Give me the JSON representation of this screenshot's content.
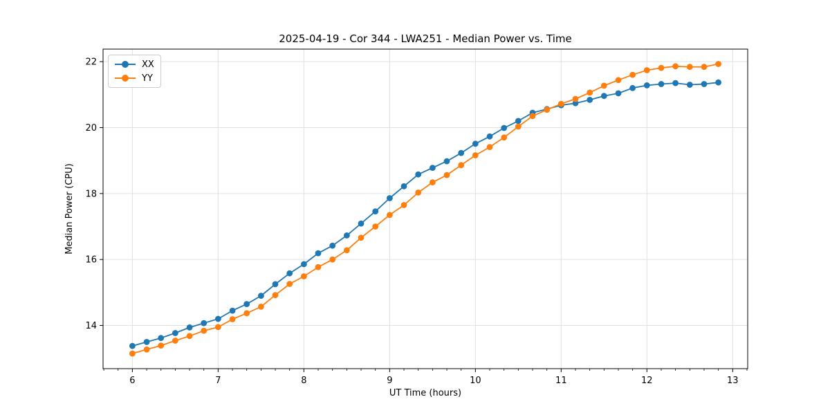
{
  "chart_data": {
    "type": "line",
    "title": "2025-04-19 - Cor 344 - LWA251 - Median Power vs. Time",
    "xlabel": "UT Time (hours)",
    "ylabel": "Median Power (CPU)",
    "xlim": [
      5.658,
      13.175
    ],
    "ylim": [
      12.69,
      22.38
    ],
    "xticks": [
      6,
      7,
      8,
      9,
      10,
      11,
      12,
      13
    ],
    "yticks": [
      14,
      16,
      18,
      20,
      22
    ],
    "x_minor_per_major": 6,
    "grid": true,
    "grid_color": "#e0e0e0",
    "axis_color": "#000000",
    "legend_position": "upper-left",
    "legend_labels": [
      "XX",
      "YY"
    ],
    "series": [
      {
        "name": "XX",
        "color": "#1f77b4",
        "marker": "circle",
        "x": [
          6.0,
          6.1667,
          6.3333,
          6.5,
          6.6667,
          6.8333,
          7.0,
          7.1667,
          7.3333,
          7.5,
          7.6667,
          7.8333,
          8.0,
          8.1667,
          8.3333,
          8.5,
          8.6667,
          8.8333,
          9.0,
          9.1667,
          9.3333,
          9.5,
          9.6667,
          9.8333,
          10.0,
          10.1667,
          10.3333,
          10.5,
          10.6667,
          10.8333,
          11.0,
          11.1667,
          11.3333,
          11.5,
          11.6667,
          11.8333,
          12.0,
          12.1667,
          12.3333,
          12.5,
          12.6667,
          12.8333
        ],
        "y": [
          13.38,
          13.5,
          13.62,
          13.77,
          13.94,
          14.07,
          14.2,
          14.45,
          14.65,
          14.9,
          15.25,
          15.58,
          15.86,
          16.19,
          16.42,
          16.73,
          17.09,
          17.46,
          17.86,
          18.22,
          18.58,
          18.78,
          18.98,
          19.23,
          19.51,
          19.73,
          19.99,
          20.2,
          20.45,
          20.56,
          20.68,
          20.74,
          20.84,
          20.96,
          21.04,
          21.2,
          21.28,
          21.32,
          21.35,
          21.3,
          21.32,
          21.37
        ]
      },
      {
        "name": "YY",
        "color": "#ff7f0e",
        "marker": "circle",
        "x": [
          6.0,
          6.1667,
          6.3333,
          6.5,
          6.6667,
          6.8333,
          7.0,
          7.1667,
          7.3333,
          7.5,
          7.6667,
          7.8333,
          8.0,
          8.1667,
          8.3333,
          8.5,
          8.6667,
          8.8333,
          9.0,
          9.1667,
          9.3333,
          9.5,
          9.6667,
          9.8333,
          10.0,
          10.1667,
          10.3333,
          10.5,
          10.6667,
          10.8333,
          11.0,
          11.1667,
          11.3333,
          11.5,
          11.6667,
          11.8333,
          12.0,
          12.1667,
          12.3333,
          12.5,
          12.6667,
          12.8333
        ],
        "y": [
          13.15,
          13.27,
          13.39,
          13.54,
          13.68,
          13.84,
          13.95,
          14.19,
          14.37,
          14.57,
          14.92,
          15.26,
          15.49,
          15.77,
          16.0,
          16.28,
          16.66,
          17.0,
          17.35,
          17.65,
          18.03,
          18.34,
          18.56,
          18.86,
          19.16,
          19.41,
          19.7,
          20.03,
          20.35,
          20.54,
          20.72,
          20.87,
          21.06,
          21.27,
          21.44,
          21.6,
          21.74,
          21.81,
          21.86,
          21.84,
          21.84,
          21.93
        ]
      }
    ]
  }
}
